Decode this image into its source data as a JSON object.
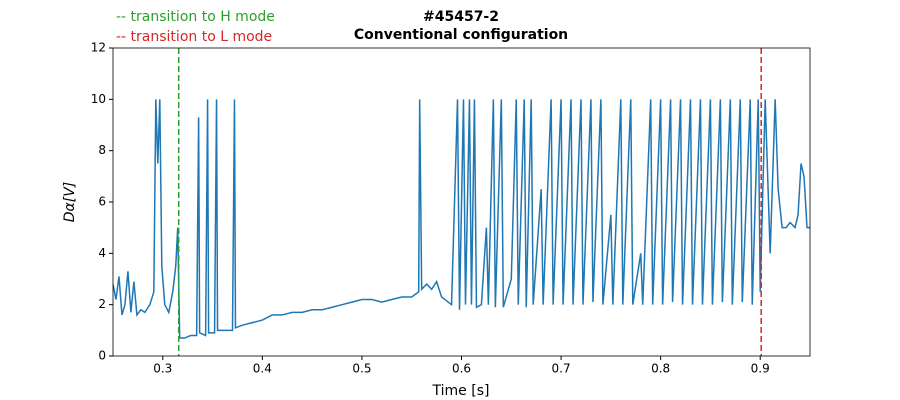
{
  "chart_data": {
    "type": "line",
    "title": "#45457-2",
    "subtitle": "Conventional configuration",
    "xlabel": "Time [s]",
    "ylabel": "Dα[V]",
    "x": [
      0.25,
      0.253,
      0.256,
      0.259,
      0.262,
      0.265,
      0.268,
      0.271,
      0.274,
      0.278,
      0.282,
      0.287,
      0.291,
      0.293,
      0.295,
      0.297,
      0.299,
      0.302,
      0.306,
      0.31,
      0.313,
      0.315,
      0.317,
      0.322,
      0.328,
      0.334,
      0.336,
      0.337,
      0.343,
      0.345,
      0.346,
      0.352,
      0.354,
      0.355,
      0.362,
      0.37,
      0.372,
      0.373,
      0.38,
      0.39,
      0.4,
      0.41,
      0.42,
      0.43,
      0.44,
      0.45,
      0.46,
      0.47,
      0.48,
      0.49,
      0.5,
      0.51,
      0.52,
      0.53,
      0.54,
      0.55,
      0.557,
      0.558,
      0.56,
      0.565,
      0.57,
      0.575,
      0.58,
      0.59,
      0.596,
      0.598,
      0.602,
      0.604,
      0.608,
      0.61,
      0.613,
      0.615,
      0.62,
      0.625,
      0.627,
      0.632,
      0.634,
      0.64,
      0.642,
      0.65,
      0.655,
      0.657,
      0.663,
      0.665,
      0.67,
      0.672,
      0.68,
      0.682,
      0.69,
      0.692,
      0.7,
      0.702,
      0.71,
      0.712,
      0.72,
      0.722,
      0.73,
      0.732,
      0.74,
      0.742,
      0.75,
      0.752,
      0.76,
      0.762,
      0.77,
      0.772,
      0.78,
      0.782,
      0.79,
      0.792,
      0.8,
      0.802,
      0.81,
      0.812,
      0.82,
      0.822,
      0.83,
      0.832,
      0.84,
      0.842,
      0.85,
      0.852,
      0.86,
      0.862,
      0.87,
      0.872,
      0.88,
      0.882,
      0.89,
      0.892,
      0.898,
      0.9,
      0.905,
      0.91,
      0.915,
      0.918,
      0.922,
      0.926,
      0.93,
      0.935,
      0.938,
      0.941,
      0.944,
      0.947,
      0.95
    ],
    "values": [
      2.8,
      2.2,
      3.1,
      1.6,
      2.0,
      3.3,
      1.7,
      2.9,
      1.6,
      1.8,
      1.7,
      2.0,
      2.5,
      10.0,
      7.5,
      10.0,
      3.5,
      2.0,
      1.7,
      2.5,
      3.5,
      5.0,
      0.7,
      0.7,
      0.8,
      0.8,
      9.3,
      0.9,
      0.8,
      10.0,
      0.9,
      0.9,
      10.0,
      1.0,
      1.0,
      1.0,
      10.0,
      1.1,
      1.2,
      1.3,
      1.4,
      1.6,
      1.6,
      1.7,
      1.7,
      1.8,
      1.8,
      1.9,
      2.0,
      2.1,
      2.2,
      2.2,
      2.1,
      2.2,
      2.3,
      2.3,
      2.5,
      10.0,
      2.6,
      2.8,
      2.6,
      2.9,
      2.3,
      2.0,
      10.0,
      1.8,
      10.0,
      2.0,
      10.0,
      2.0,
      10.0,
      1.9,
      2.0,
      5.0,
      2.0,
      10.0,
      1.9,
      10.0,
      1.9,
      3.0,
      10.0,
      2.0,
      10.0,
      1.9,
      10.0,
      2.0,
      6.5,
      2.0,
      10.0,
      2.0,
      10.0,
      2.0,
      10.0,
      2.0,
      10.0,
      2.0,
      10.0,
      2.1,
      10.0,
      2.0,
      5.5,
      2.0,
      10.0,
      2.0,
      10.0,
      2.0,
      4.0,
      2.0,
      10.0,
      2.0,
      10.0,
      2.0,
      10.0,
      2.1,
      10.0,
      2.0,
      10.0,
      2.0,
      10.0,
      2.0,
      10.0,
      2.0,
      10.0,
      2.1,
      10.0,
      2.0,
      10.0,
      2.1,
      10.0,
      2.0,
      10.0,
      2.5,
      10.0,
      4.0,
      10.0,
      6.5,
      5.0,
      5.0,
      5.2,
      5.0,
      5.5,
      7.5,
      7.0,
      5.0,
      5.0
    ],
    "color": "#1f77b4",
    "xlim": [
      0.25,
      0.95
    ],
    "xticks": [
      0.3,
      0.4,
      0.5,
      0.6,
      0.7,
      0.8,
      0.9
    ],
    "ylim": [
      0,
      12
    ],
    "yticks": [
      0,
      2,
      4,
      6,
      8,
      10,
      12
    ],
    "vlines": [
      {
        "x": 0.316,
        "color": "#2ca02c",
        "label": "-- transition to H mode"
      },
      {
        "x": 0.901,
        "color": "#d62728",
        "label": "-- transition to L mode"
      }
    ]
  }
}
